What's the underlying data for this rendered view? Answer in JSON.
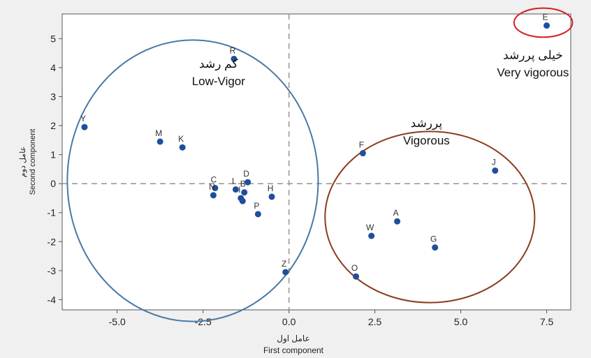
{
  "chart_data": {
    "type": "scatter",
    "xlabel": "First component",
    "xlabel_fa": "عامل اول",
    "ylabel": "Second component",
    "ylabel_fa": "عامل دوم",
    "xlim": [
      -6.6,
      8.2
    ],
    "ylim": [
      -4.35,
      5.85
    ],
    "xticks": [
      -5.0,
      -2.5,
      0.0,
      2.5,
      5.0,
      7.5
    ],
    "xtick_labels": [
      "-5.0",
      "-2.5",
      "0.0",
      "2.5",
      "5.0",
      "7.5"
    ],
    "yticks": [
      -4,
      -3,
      -2,
      -1,
      0,
      1,
      2,
      3,
      4,
      5
    ],
    "ytick_labels": [
      "-4",
      "-3",
      "-2",
      "-1",
      "0",
      "1",
      "2",
      "3",
      "4",
      "5"
    ],
    "reference_lines": {
      "x": 0,
      "y": 0,
      "style": "dashed"
    },
    "point_color": "#1f4e9c",
    "points": [
      {
        "label": "E",
        "x": 7.5,
        "y": 5.45
      },
      {
        "label": "R",
        "x": -1.6,
        "y": 4.3
      },
      {
        "label": "Y",
        "x": -5.95,
        "y": 1.95
      },
      {
        "label": "M",
        "x": -3.75,
        "y": 1.45
      },
      {
        "label": "K",
        "x": -3.1,
        "y": 1.25
      },
      {
        "label": "F",
        "x": 2.15,
        "y": 1.05
      },
      {
        "label": "J",
        "x": 6.0,
        "y": 0.45
      },
      {
        "label": "C",
        "x": -2.15,
        "y": -0.15
      },
      {
        "label": "D",
        "x": -1.2,
        "y": 0.05
      },
      {
        "label": "L",
        "x": -1.55,
        "y": -0.2
      },
      {
        "label": "B",
        "x": -1.3,
        "y": -0.3
      },
      {
        "label": "N",
        "x": -2.2,
        "y": -0.4
      },
      {
        "label": "I",
        "x": -1.4,
        "y": -0.5
      },
      {
        "label": "",
        "x": -1.35,
        "y": -0.6
      },
      {
        "label": "H",
        "x": -0.5,
        "y": -0.45
      },
      {
        "label": "P",
        "x": -0.9,
        "y": -1.05
      },
      {
        "label": "A",
        "x": 3.15,
        "y": -1.3
      },
      {
        "label": "W",
        "x": 2.4,
        "y": -1.8
      },
      {
        "label": "G",
        "x": 4.25,
        "y": -2.2
      },
      {
        "label": "O",
        "x": 1.95,
        "y": -3.2
      },
      {
        "label": "Z",
        "x": -0.1,
        "y": -3.05
      }
    ],
    "groups": [
      {
        "label_fa": "کم رشد",
        "label_en": "Low-Vigor",
        "color": "#4a78a6",
        "cx": -2.8,
        "cy": 0.1,
        "rx": 3.65,
        "ry": 4.85
      },
      {
        "label_fa": "پررشد",
        "label_en": "Vigorous",
        "color": "#8b3d1f",
        "cx": 4.1,
        "cy": -1.15,
        "rx": 3.05,
        "ry": 2.95
      },
      {
        "label_fa": "خیلی پررشد",
        "label_en": "Very vigorous",
        "color": "#d42020",
        "cx": 7.4,
        "cy": 5.55,
        "rx": 0.85,
        "ry": 0.5
      }
    ]
  }
}
